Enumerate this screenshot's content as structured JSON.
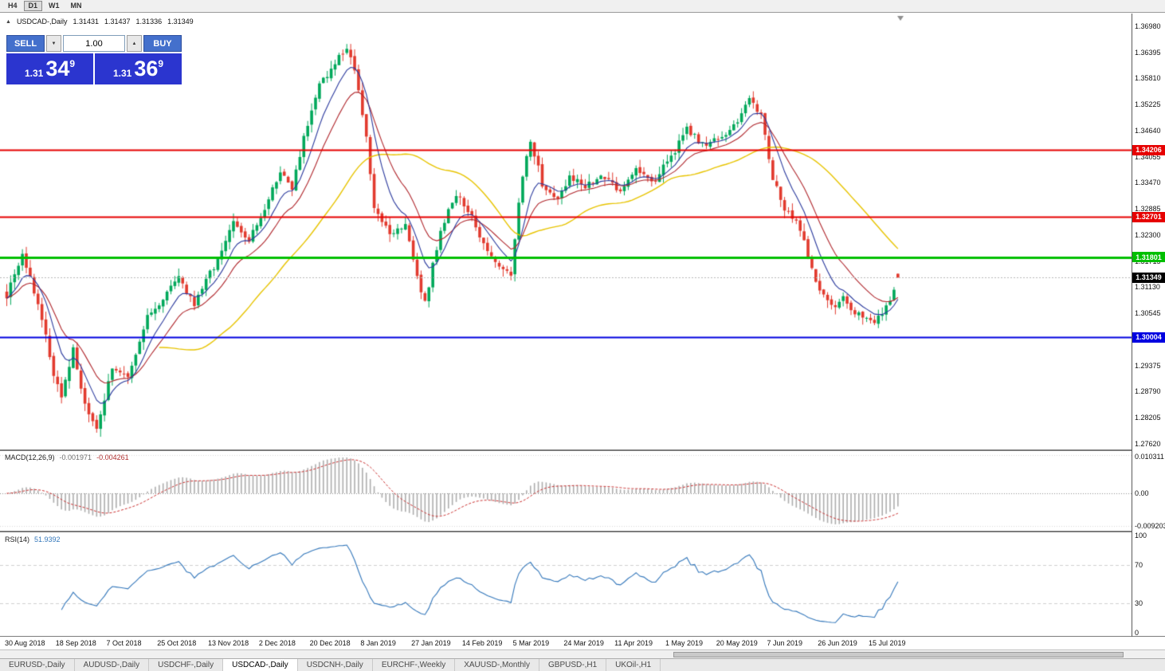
{
  "toolbar": {
    "periods": [
      {
        "label": "H4",
        "active": false
      },
      {
        "label": "D1",
        "active": true
      },
      {
        "label": "W1",
        "active": false
      },
      {
        "label": "MN",
        "active": false
      }
    ]
  },
  "chart_header": {
    "collapse_icon": "▲",
    "title": "USDCAD-,Daily",
    "open": "1.31431",
    "high": "1.31437",
    "low": "1.31336",
    "close": "1.31349"
  },
  "one_click": {
    "sell_label": "SELL",
    "buy_label": "BUY",
    "volume": "1.00",
    "dec_glyph": "▼",
    "inc_glyph": "▲",
    "sell_handle": "1.31",
    "sell_big": "34",
    "sell_pip": "9",
    "buy_handle": "1.31",
    "buy_big": "36",
    "buy_pip": "9"
  },
  "price_axis": {
    "labels": [
      "1.36980",
      "1.36395",
      "1.35810",
      "1.35225",
      "1.34640",
      "1.34055",
      "1.33470",
      "1.32885",
      "1.32300",
      "1.31715",
      "1.31130",
      "1.30545",
      "1.29960",
      "1.29375",
      "1.28790",
      "1.28205",
      "1.27620"
    ]
  },
  "current_price": {
    "label": "1.31349",
    "value": 1.31349,
    "badge_color": "#000000"
  },
  "macd_panel": {
    "name": "MACD(12,26,9)",
    "main_value": "-0.001971",
    "signal_value": "-0.004261",
    "axis_max_label": "0.010311",
    "axis_zero_label": "0.00",
    "axis_min_label": "-0.009203"
  },
  "rsi_panel": {
    "name": "RSI(14)",
    "value": "51.9392",
    "axis_labels": [
      "100",
      "70",
      "30",
      "0"
    ],
    "axis_values": [
      100,
      70,
      30,
      0
    ],
    "levels": [
      70,
      30
    ]
  },
  "date_axis": {
    "labels": [
      "30 Aug 2018",
      "18 Sep 2018",
      "7 Oct 2018",
      "25 Oct 2018",
      "13 Nov 2018",
      "2 Dec 2018",
      "20 Dec 2018",
      "8 Jan 2019",
      "27 Jan 2019",
      "14 Feb 2019",
      "5 Mar 2019",
      "24 Mar 2019",
      "11 Apr 2019",
      "1 May 2019",
      "20 May 2019",
      "7 Jun 2019",
      "26 Jun 2019",
      "15 Jul 2019"
    ]
  },
  "tabs": [
    {
      "label": "EURUSD-,Daily",
      "active": false
    },
    {
      "label": "AUDUSD-,Daily",
      "active": false
    },
    {
      "label": "USDCHF-,Daily",
      "active": false
    },
    {
      "label": "USDCAD-,Daily",
      "active": true
    },
    {
      "label": "USDCNH-,Daily",
      "active": false
    },
    {
      "label": "EURCHF-,Weekly",
      "active": false
    },
    {
      "label": "XAUUSD-,Monthly",
      "active": false
    },
    {
      "label": "GBPUSD-,H1",
      "active": false
    },
    {
      "label": "UKOil-,H1",
      "active": false
    }
  ],
  "chart_data": {
    "type": "candlestick",
    "symbol": "USDCAD-",
    "timeframe": "Daily",
    "bars": 229,
    "ohlc_last": {
      "open": 1.31431,
      "high": 1.31437,
      "low": 1.31336,
      "close": 1.31349
    },
    "y_axis": {
      "top_price": 1.37266,
      "bottom_price": 1.27509,
      "tick_step": 0.00585
    },
    "price_anchors": [
      [
        0,
        1.3095
      ],
      [
        4,
        1.3185
      ],
      [
        8,
        1.308
      ],
      [
        12,
        1.292
      ],
      [
        14,
        1.2865
      ],
      [
        17,
        1.2975
      ],
      [
        20,
        1.2845
      ],
      [
        23,
        1.279
      ],
      [
        27,
        1.2935
      ],
      [
        31,
        1.2905
      ],
      [
        36,
        1.3045
      ],
      [
        40,
        1.309
      ],
      [
        44,
        1.313
      ],
      [
        48,
        1.3075
      ],
      [
        53,
        1.316
      ],
      [
        58,
        1.3255
      ],
      [
        62,
        1.3215
      ],
      [
        66,
        1.329
      ],
      [
        70,
        1.3375
      ],
      [
        73,
        1.3335
      ],
      [
        76,
        1.345
      ],
      [
        80,
        1.3565
      ],
      [
        84,
        1.3615
      ],
      [
        87,
        1.3655
      ],
      [
        89,
        1.36
      ],
      [
        92,
        1.3445
      ],
      [
        94,
        1.329
      ],
      [
        98,
        1.3235
      ],
      [
        102,
        1.3255
      ],
      [
        105,
        1.314
      ],
      [
        107,
        1.3075
      ],
      [
        111,
        1.3245
      ],
      [
        115,
        1.332
      ],
      [
        118,
        1.3285
      ],
      [
        122,
        1.3215
      ],
      [
        126,
        1.3155
      ],
      [
        129,
        1.314
      ],
      [
        131,
        1.331
      ],
      [
        134,
        1.3445
      ],
      [
        137,
        1.3345
      ],
      [
        141,
        1.3315
      ],
      [
        144,
        1.336
      ],
      [
        148,
        1.334
      ],
      [
        152,
        1.3365
      ],
      [
        157,
        1.3325
      ],
      [
        161,
        1.3385
      ],
      [
        165,
        1.3345
      ],
      [
        170,
        1.3405
      ],
      [
        174,
        1.3465
      ],
      [
        178,
        1.3435
      ],
      [
        183,
        1.3445
      ],
      [
        187,
        1.3485
      ],
      [
        190,
        1.354
      ],
      [
        193,
        1.3495
      ],
      [
        196,
        1.3355
      ],
      [
        199,
        1.329
      ],
      [
        202,
        1.3265
      ],
      [
        205,
        1.3185
      ],
      [
        208,
        1.3105
      ],
      [
        211,
        1.307
      ],
      [
        214,
        1.3085
      ],
      [
        217,
        1.3055
      ],
      [
        220,
        1.304
      ],
      [
        222,
        1.3032
      ],
      [
        225,
        1.3065
      ],
      [
        228,
        1.31349
      ]
    ],
    "horizontal_lines": [
      {
        "price": 1.34206,
        "label": "1.34206",
        "color": "#e60000",
        "width": 2
      },
      {
        "price": 1.32701,
        "label": "1.32701",
        "color": "#e60000",
        "width": 2
      },
      {
        "price": 1.31801,
        "label": "1.31801",
        "color": "#00bf00",
        "width": 3
      },
      {
        "price": 1.30004,
        "label": "1.30004",
        "color": "#0000e0",
        "width": 2
      }
    ],
    "moving_averages": [
      {
        "type": "sma",
        "period": 40,
        "color": "#e8c400"
      },
      {
        "type": "ema",
        "period": 16,
        "color": "#b0262c"
      },
      {
        "type": "ema",
        "period": 8,
        "color": "#2b3a9e"
      }
    ],
    "candle_colors": {
      "up": "#00a85a",
      "down": "#e23a2e"
    },
    "indicators": [
      {
        "type": "macd",
        "params": [
          12,
          26,
          9
        ],
        "histogram_color": "#adadad",
        "signal_color": "#cc3333",
        "last_main": -0.001971,
        "last_signal": -0.004261
      },
      {
        "type": "rsi",
        "params": [
          14
        ],
        "color": "#3377bb",
        "last": 51.9392
      }
    ]
  }
}
